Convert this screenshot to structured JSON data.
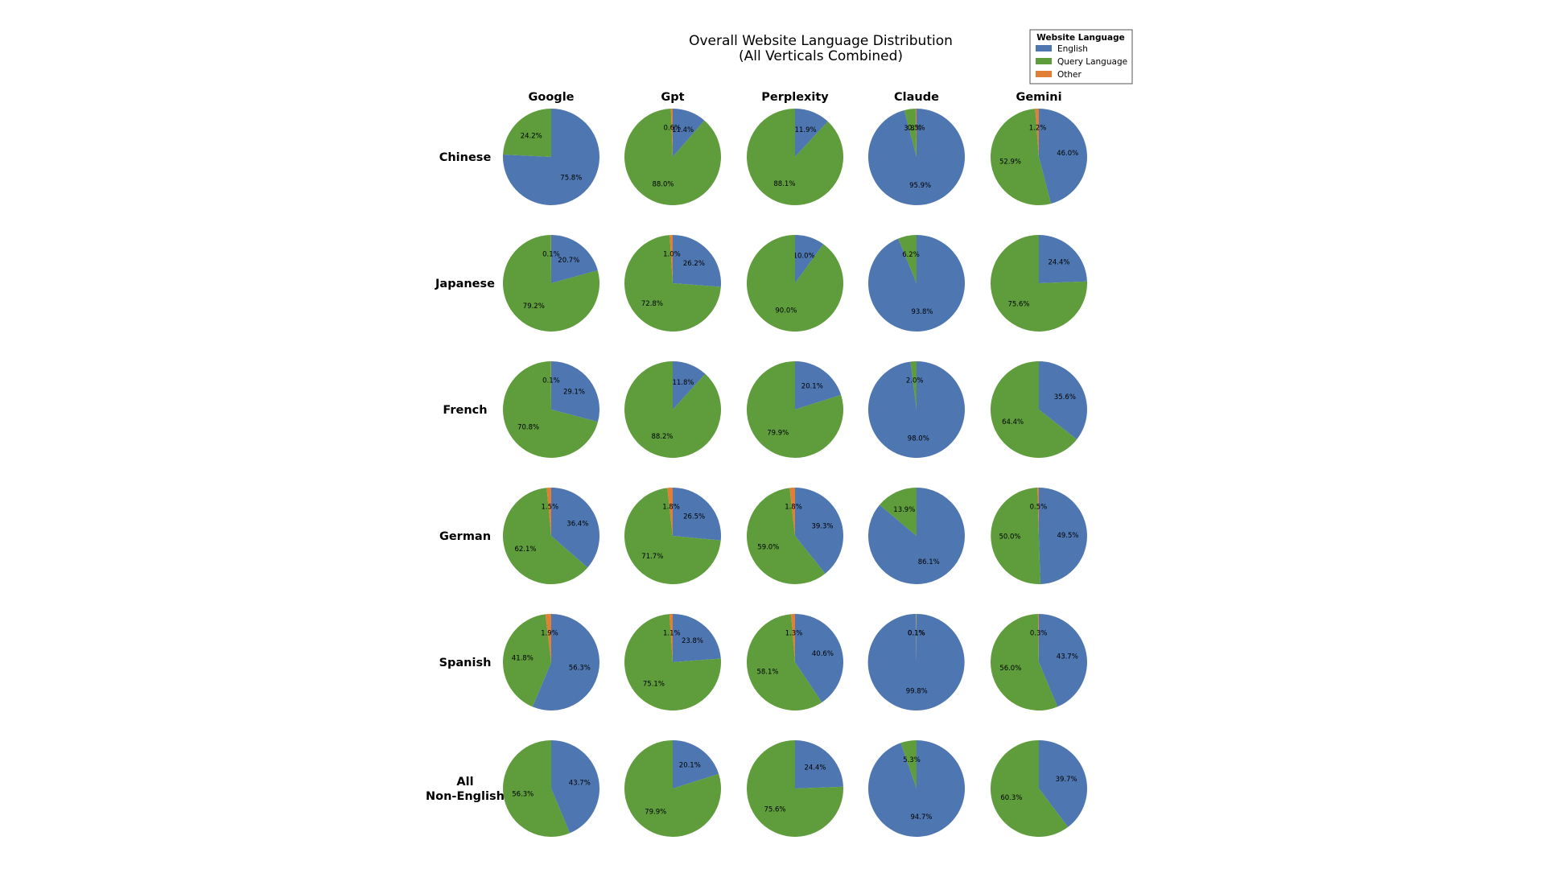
{
  "chart_data": {
    "type": "pie",
    "title_lines": [
      "Overall Website Language Distribution",
      "(All Verticals Combined)"
    ],
    "columns": [
      "Google",
      "Gpt",
      "Perplexity",
      "Claude",
      "Gemini"
    ],
    "rows": [
      [
        "Chinese"
      ],
      [
        "Japanese"
      ],
      [
        "French"
      ],
      [
        "German"
      ],
      [
        "Spanish"
      ],
      [
        "All",
        "Non-English"
      ]
    ],
    "legend": {
      "title": "Website Language",
      "placement": "top-right",
      "entries": [
        "English",
        "Query Language",
        "Other"
      ]
    },
    "colors": {
      "English": "#4e76b0",
      "Query Language": "#5e9c3c",
      "Other": "#e07f35"
    },
    "values": [
      [
        {
          "English": 75.8,
          "Query Language": 24.2,
          "Other": 0.0
        },
        {
          "English": 11.4,
          "Query Language": 88.0,
          "Other": 0.6
        },
        {
          "English": 11.9,
          "Query Language": 88.1,
          "Other": 0.0
        },
        {
          "English": 95.9,
          "Query Language": 3.8,
          "Other": 0.3
        },
        {
          "English": 46.0,
          "Query Language": 52.9,
          "Other": 1.2
        }
      ],
      [
        {
          "English": 20.7,
          "Query Language": 79.2,
          "Other": 0.1
        },
        {
          "English": 26.2,
          "Query Language": 72.8,
          "Other": 1.0
        },
        {
          "English": 10.0,
          "Query Language": 90.0,
          "Other": 0.0
        },
        {
          "English": 93.8,
          "Query Language": 6.2,
          "Other": 0.0
        },
        {
          "English": 24.4,
          "Query Language": 75.6,
          "Other": 0.0
        }
      ],
      [
        {
          "English": 29.1,
          "Query Language": 70.8,
          "Other": 0.1
        },
        {
          "English": 11.8,
          "Query Language": 88.2,
          "Other": 0.0
        },
        {
          "English": 20.1,
          "Query Language": 79.9,
          "Other": 0.0
        },
        {
          "English": 98.0,
          "Query Language": 2.0,
          "Other": 0.0
        },
        {
          "English": 35.6,
          "Query Language": 64.4,
          "Other": 0.0
        }
      ],
      [
        {
          "English": 36.4,
          "Query Language": 62.1,
          "Other": 1.5
        },
        {
          "English": 26.5,
          "Query Language": 71.7,
          "Other": 1.8
        },
        {
          "English": 39.3,
          "Query Language": 59.0,
          "Other": 1.8
        },
        {
          "English": 86.1,
          "Query Language": 13.9,
          "Other": 0.0
        },
        {
          "English": 49.5,
          "Query Language": 50.0,
          "Other": 0.5
        }
      ],
      [
        {
          "English": 56.3,
          "Query Language": 41.8,
          "Other": 1.9
        },
        {
          "English": 23.8,
          "Query Language": 75.1,
          "Other": 1.1
        },
        {
          "English": 40.6,
          "Query Language": 58.1,
          "Other": 1.3
        },
        {
          "English": 99.8,
          "Query Language": 0.1,
          "Other": 0.1
        },
        {
          "English": 43.7,
          "Query Language": 56.0,
          "Other": 0.3
        }
      ],
      [
        {
          "English": 43.7,
          "Query Language": 56.3,
          "Other": 0.0
        },
        {
          "English": 20.1,
          "Query Language": 79.9,
          "Other": 0.0
        },
        {
          "English": 24.4,
          "Query Language": 75.6,
          "Other": 0.0
        },
        {
          "English": 94.7,
          "Query Language": 5.3,
          "Other": 0.0
        },
        {
          "English": 39.7,
          "Query Language": 60.3,
          "Other": 0.0
        }
      ]
    ]
  }
}
